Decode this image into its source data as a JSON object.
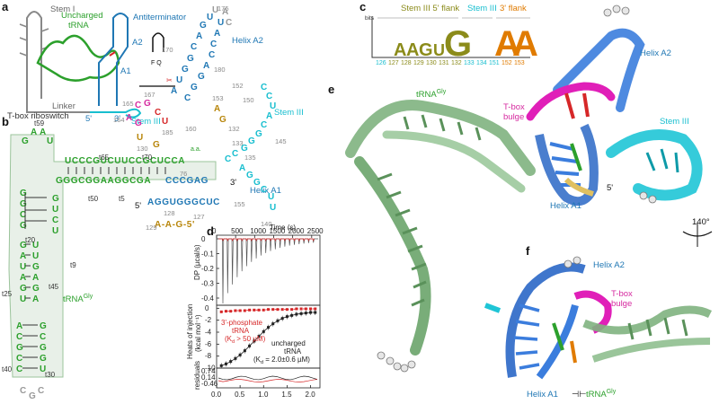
{
  "panels": {
    "a": "a",
    "b": "b",
    "c": "c",
    "d": "d",
    "e": "e",
    "f": "f"
  },
  "panel_a": {
    "stem1": "Stem I",
    "uncharged_tRNA": "Uncharged\ntRNA",
    "antiterminator": "Antiterminator",
    "a2": "A2",
    "a1": "A1",
    "linker": "Linker",
    "stem3": "Stem III",
    "t_box": "T-box riboswitch",
    "five": "5'",
    "three": "3'",
    "fq": "F Q"
  },
  "panel_b": {
    "labels": {
      "helix_a2": "Helix A2",
      "stem_iii": "Stem III",
      "helix_a1": "Helix A1",
      "trna": "tRNA",
      "trna_sup": "Gly",
      "five_a": "5'",
      "three_a": "3'",
      "five_b": "5'",
      "three_b": "3'",
      "aa": "a.a."
    },
    "trna_numbers": [
      "t59",
      "t65",
      "t70",
      "t50",
      "t5",
      "t20",
      "t9",
      "t45",
      "t25",
      "t40",
      "t30"
    ],
    "riboswitch_numbers": [
      "175",
      "170",
      "180",
      "152",
      "153",
      "150",
      "165",
      "167",
      "164",
      "160",
      "130",
      "185",
      "132",
      "133",
      "135",
      "145",
      "140",
      "128",
      "155",
      "129",
      "127",
      "76"
    ],
    "top_row_seq": "UCCCGUCUUCCGCUCCA",
    "second_row_seq": "GGGCGGAAGGCGA",
    "a1_seq": "AGGUGGGCUC",
    "a1_top": "CCCGAG",
    "bottom_seq": "A-A-G-5'",
    "stem3_seq": "GGGCAUCC",
    "a2_seq": "AUGGCAGUUACCAGGC"
  },
  "panel_c": {
    "bits": "bits",
    "headers": {
      "stem3_5flank": "Stem III 5' flank",
      "stem3": "Stem III",
      "flank3": "3' flank"
    },
    "logo_letters": [
      "A",
      "A",
      "G",
      "U",
      "G",
      "A",
      "A"
    ],
    "positions": [
      "126",
      "127",
      "128",
      "129",
      "130",
      "131",
      "132",
      "133",
      "134",
      "151",
      "152",
      "153"
    ]
  },
  "panel_d": {
    "time_label": "Time (s)",
    "time_ticks": [
      "0",
      "500",
      "1000",
      "1500",
      "2000",
      "2500"
    ],
    "dp_label": "DP (µcal/s)",
    "dp_ticks": [
      "0",
      "-0.1",
      "-0.2",
      "-0.3",
      "-0.4"
    ],
    "heats_label": "Heats of injection\n(kcal mol⁻¹)",
    "heats_ticks": [
      "0",
      "-2",
      "-4",
      "-6",
      "-8",
      "-10"
    ],
    "residuals_label": "residuals",
    "residuals_ticks": [
      "0.74",
      "0.14",
      "-0.46"
    ],
    "molar_ticks": [
      "0.0",
      "0.5",
      "1.0",
      "1.5",
      "2.0"
    ],
    "legend_phosphate": "3'-phosphate\ntRNA",
    "legend_phosphate_k": "(K",
    "legend_phosphate_k2": " > 50 µM)",
    "legend_uncharged": "uncharged\ntRNA",
    "legend_uncharged_k": "(K",
    "legend_uncharged_k2": " = 2.0±0.6 µM)",
    "colors": {
      "phosphate": "#d62728",
      "uncharged": "#222222"
    }
  },
  "panel_e": {
    "trna": "tRNA",
    "trna_sup": "Gly",
    "tbox_bulge": "T-box\nbulge",
    "helix_a2": "Helix A2",
    "stem_iii": "Stem III",
    "helix_a1": "Helix A1",
    "five": "5'",
    "rotation": "140°"
  },
  "panel_f": {
    "helix_a2": "Helix A2",
    "tbox_bulge": "T-box\nbulge",
    "helix_a1": "Helix A1",
    "trna": "tRNA",
    "trna_sup": "Gly"
  },
  "chart_data": {
    "type": "scatter",
    "title": "",
    "xlabel": "",
    "ylabel": "Heats of injection (kcal mol⁻¹)",
    "series": [
      {
        "name": "3'-phosphate tRNA",
        "x": [
          0.1,
          0.2,
          0.3,
          0.4,
          0.5,
          0.6,
          0.7,
          0.8,
          0.9,
          1.0,
          1.1,
          1.2,
          1.3,
          1.4,
          1.5,
          1.6,
          1.7,
          1.8,
          1.9,
          2.0,
          2.1
        ],
        "y": [
          -0.6,
          -0.5,
          -0.5,
          -0.4,
          -0.4,
          -0.4,
          -0.3,
          -0.3,
          -0.3,
          -0.3,
          -0.2,
          -0.2,
          -0.2,
          -0.2,
          -0.2,
          -0.2,
          -0.1,
          -0.1,
          -0.1,
          -0.1,
          -0.1
        ]
      },
      {
        "name": "uncharged tRNA",
        "x": [
          0.1,
          0.2,
          0.3,
          0.4,
          0.5,
          0.6,
          0.7,
          0.8,
          0.9,
          1.0,
          1.1,
          1.2,
          1.3,
          1.4,
          1.5,
          1.6,
          1.7,
          1.8,
          1.9,
          2.0,
          2.1
        ],
        "y": [
          -9.6,
          -9.3,
          -8.9,
          -8.4,
          -7.8,
          -7.1,
          -6.3,
          -5.5,
          -4.7,
          -3.9,
          -3.2,
          -2.6,
          -2.1,
          -1.7,
          -1.4,
          -1.2,
          -1.0,
          -0.9,
          -0.8,
          -0.7,
          -0.7
        ]
      }
    ],
    "ylim": [
      -10,
      0.5
    ],
    "xlim": [
      0,
      2.2
    ]
  }
}
